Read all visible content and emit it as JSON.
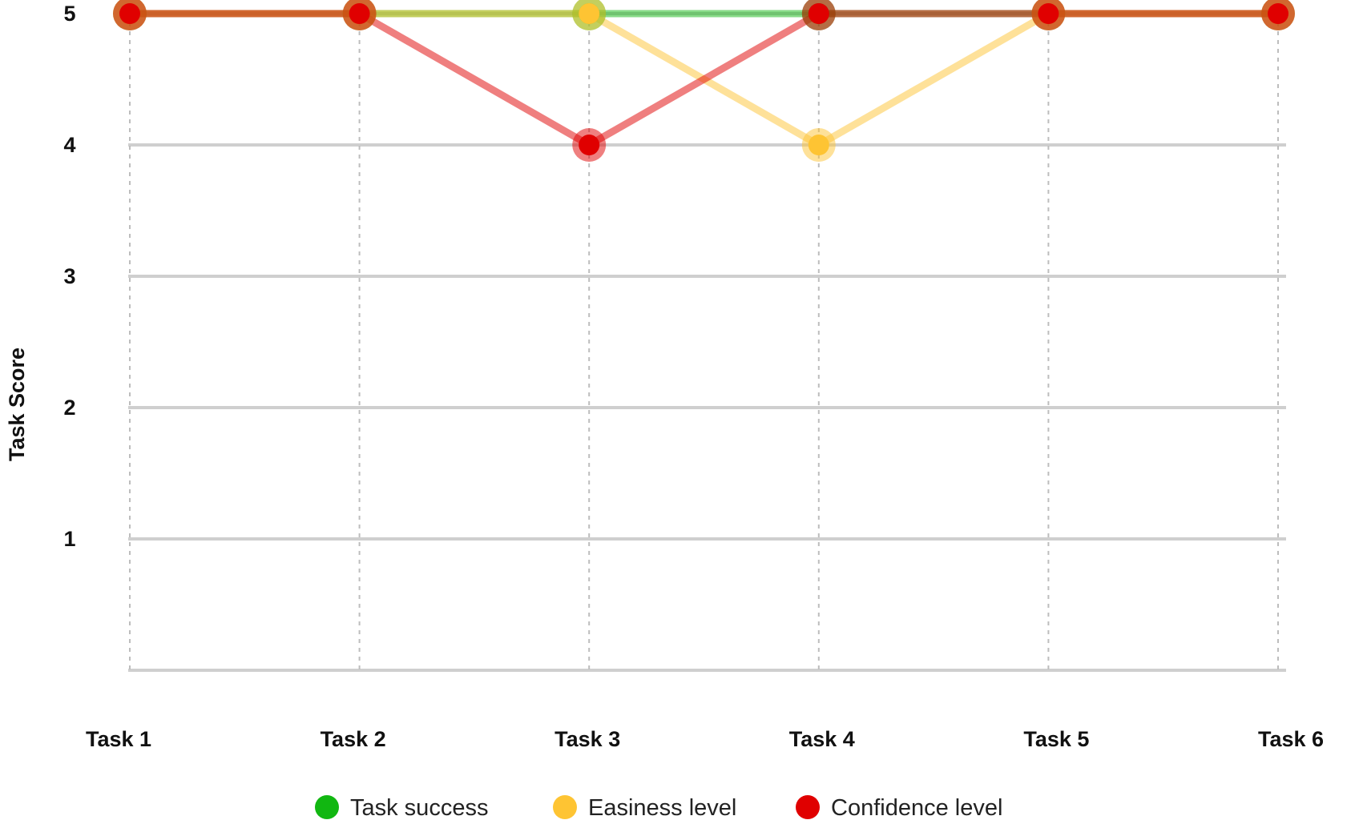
{
  "chart_data": {
    "type": "line",
    "categories": [
      "Task 1",
      "Task 2",
      "Task 3",
      "Task 4",
      "Task 5",
      "Task 6"
    ],
    "ylabel": "Task Score",
    "xlabel": "",
    "ylim": [
      0,
      5
    ],
    "yticks": [
      1,
      2,
      3,
      4,
      5
    ],
    "grid": true,
    "legend_position": "bottom",
    "series": [
      {
        "name": "Task success",
        "values": [
          5,
          5,
          5,
          5,
          5,
          5
        ],
        "color": "#11b711"
      },
      {
        "name": "Easiness level",
        "values": [
          5,
          5,
          5,
          4,
          5,
          5
        ],
        "color": "#fec433"
      },
      {
        "name": "Confidence level",
        "values": [
          5,
          5,
          4,
          5,
          5,
          5
        ],
        "color": "#e00000"
      }
    ]
  }
}
